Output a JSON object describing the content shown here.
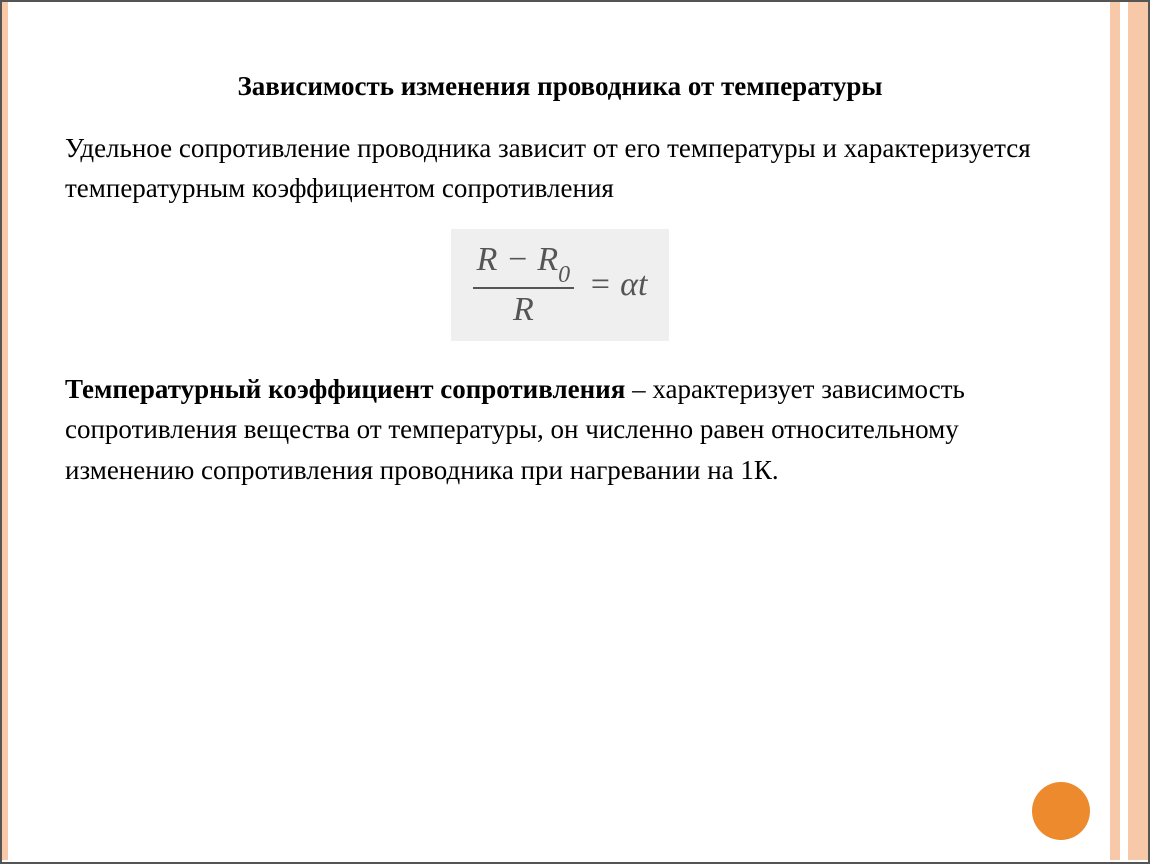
{
  "slide": {
    "title": "Зависимость изменения проводника от температуры",
    "intro": "Удельное сопротивление проводника зависит от его температуры и характеризуется температурным коэффициентом сопротивления",
    "formula": {
      "numerator_left": "R",
      "numerator_minus": "−",
      "numerator_right": "R",
      "numerator_sub": "0",
      "denominator": "R",
      "equals": "=",
      "rhs_alpha": "α",
      "rhs_t": "t"
    },
    "definition_term": "Температурный коэффициент сопротивления",
    "definition_dash": " – ",
    "definition_body": "характеризует зависимость сопротивления вещества от температуры, он численно равен относительному изменению сопротивления проводника при нагревании на 1К."
  },
  "style": {
    "background": "#ffffff",
    "accent_light": "#f8c9a8",
    "accent_circle": "#ee8a2e",
    "formula_bg": "#efefef",
    "text_color": "#000000",
    "formula_color": "#555555",
    "title_fontsize": 27,
    "body_fontsize": 27,
    "formula_fontsize": 34
  }
}
